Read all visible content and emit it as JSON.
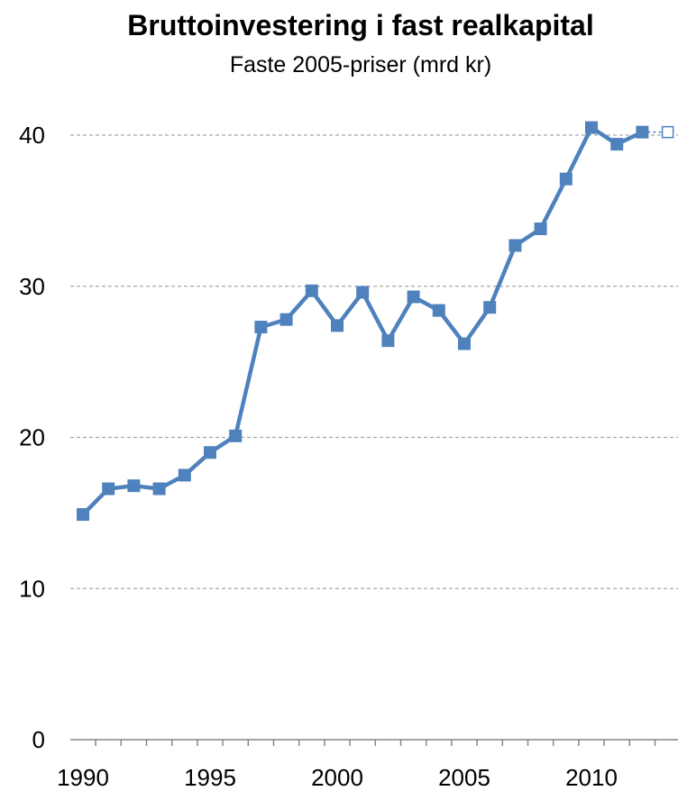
{
  "chart_data": {
    "type": "line",
    "title": "Bruttoinvestering i fast realkapital",
    "subtitle": "Faste 2005-priser (mrd kr)",
    "xlabel": "",
    "ylabel": "",
    "ylim": [
      0,
      40
    ],
    "yticks": [
      0,
      10,
      20,
      30,
      40
    ],
    "xticks": [
      1990,
      1995,
      2000,
      2005,
      2010
    ],
    "grid": "horizontal dashed",
    "colors": {
      "series": "#4f81bd",
      "grid": "#a6a6a6",
      "axis": "#868686"
    },
    "series": [
      {
        "x": [
          1990,
          1991,
          1992,
          1993,
          1994,
          1995,
          1996,
          1997,
          1998,
          1999,
          2000,
          2001,
          2002,
          2003,
          2004,
          2005,
          2006,
          2007,
          2008,
          2009,
          2010,
          2011,
          2012
        ],
        "values": [
          14.9,
          16.6,
          16.8,
          16.6,
          17.5,
          19.0,
          20.1,
          27.3,
          27.8,
          29.7,
          27.4,
          29.6,
          26.4,
          29.3,
          28.4,
          26.2,
          28.6,
          32.7,
          33.8,
          37.1,
          40.5,
          39.4,
          40.2
        ],
        "marker": "filled-square"
      },
      {
        "x": [
          2012,
          2013
        ],
        "values": [
          40.2,
          40.2
        ],
        "marker": "open-square",
        "style": "dotted"
      }
    ]
  }
}
